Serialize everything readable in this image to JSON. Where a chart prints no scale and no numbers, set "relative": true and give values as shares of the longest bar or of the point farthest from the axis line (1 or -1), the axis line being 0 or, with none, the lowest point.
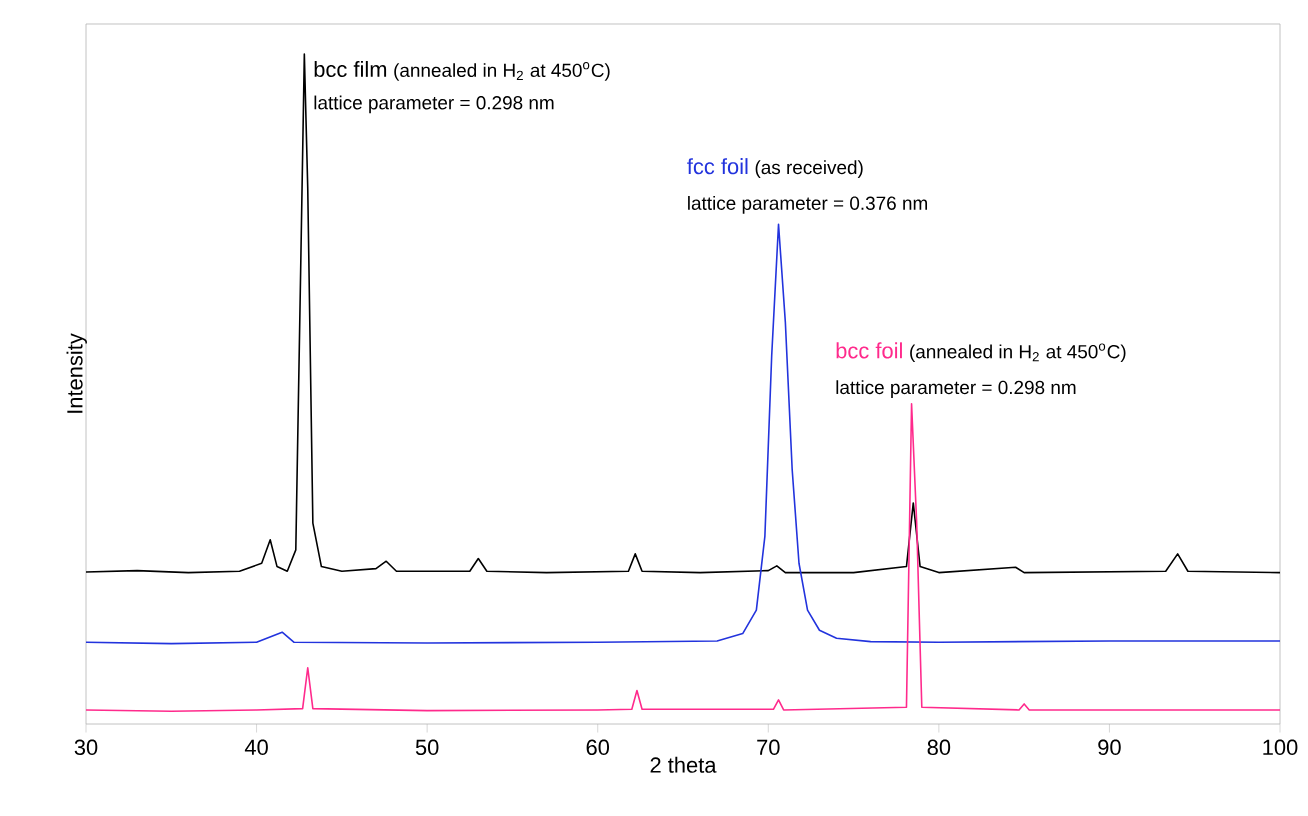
{
  "chart_data": {
    "type": "line",
    "relative": true,
    "xlabel": "2 theta",
    "ylabel": "Intensity",
    "xlim": [
      30,
      100
    ],
    "xticks": [
      30,
      40,
      50,
      60,
      70,
      80,
      90,
      100
    ],
    "annotations": [
      "(annealed in H$_{2}$ at 450$^{o}$C)",
      "lattice parameter = 0.298 nm",
      "(as received)",
      "lattice parameter = 0.376 nm",
      "(annealed in H$_{2}$ at 450$^{o}$C)",
      "lattice parameter = 0.298 nm"
    ],
    "series": [
      {
        "name": "bcc film",
        "color": "#000000",
        "x": [
          30,
          33,
          36,
          39,
          40.3,
          40.8,
          41.2,
          41.8,
          42.3,
          42.6,
          42.8,
          43.0,
          43.3,
          43.8,
          45,
          47,
          47.6,
          48.2,
          52.5,
          53,
          53.5,
          57,
          61.8,
          62.2,
          62.6,
          66,
          70,
          70.5,
          71,
          75,
          78.1,
          78.5,
          78.9,
          80,
          84.5,
          85,
          93.3,
          94,
          94.6,
          100
        ],
        "values": [
          0.227,
          0.229,
          0.226,
          0.228,
          0.24,
          0.275,
          0.235,
          0.228,
          0.26,
          0.7,
          1.0,
          0.8,
          0.3,
          0.235,
          0.228,
          0.232,
          0.243,
          0.228,
          0.228,
          0.247,
          0.228,
          0.226,
          0.228,
          0.254,
          0.228,
          0.226,
          0.229,
          0.236,
          0.226,
          0.226,
          0.235,
          0.33,
          0.235,
          0.226,
          0.234,
          0.226,
          0.228,
          0.254,
          0.228,
          0.226
        ]
      },
      {
        "name": "fcc foil",
        "color": "#2233dd",
        "x": [
          30,
          35,
          40,
          41.5,
          42.2,
          50,
          60,
          67,
          68.5,
          69.3,
          69.8,
          70.2,
          70.6,
          71.0,
          71.4,
          71.8,
          72.3,
          73,
          74,
          76,
          80,
          90,
          100
        ],
        "values": [
          0.122,
          0.12,
          0.122,
          0.137,
          0.122,
          0.121,
          0.122,
          0.124,
          0.135,
          0.17,
          0.28,
          0.55,
          0.746,
          0.6,
          0.38,
          0.24,
          0.17,
          0.14,
          0.128,
          0.123,
          0.122,
          0.124,
          0.124
        ]
      },
      {
        "name": "bcc foil",
        "color": "#ff2a8c",
        "x": [
          30,
          35,
          40,
          42.7,
          43,
          43.3,
          50,
          60,
          62,
          62.3,
          62.6,
          70.3,
          70.6,
          70.9,
          78.1,
          78.4,
          78.7,
          79.0,
          84.7,
          85,
          85.3,
          100
        ],
        "values": [
          0.021,
          0.019,
          0.021,
          0.023,
          0.084,
          0.023,
          0.02,
          0.021,
          0.022,
          0.05,
          0.022,
          0.022,
          0.036,
          0.021,
          0.025,
          0.478,
          0.3,
          0.025,
          0.021,
          0.03,
          0.021,
          0.021
        ]
      }
    ]
  }
}
